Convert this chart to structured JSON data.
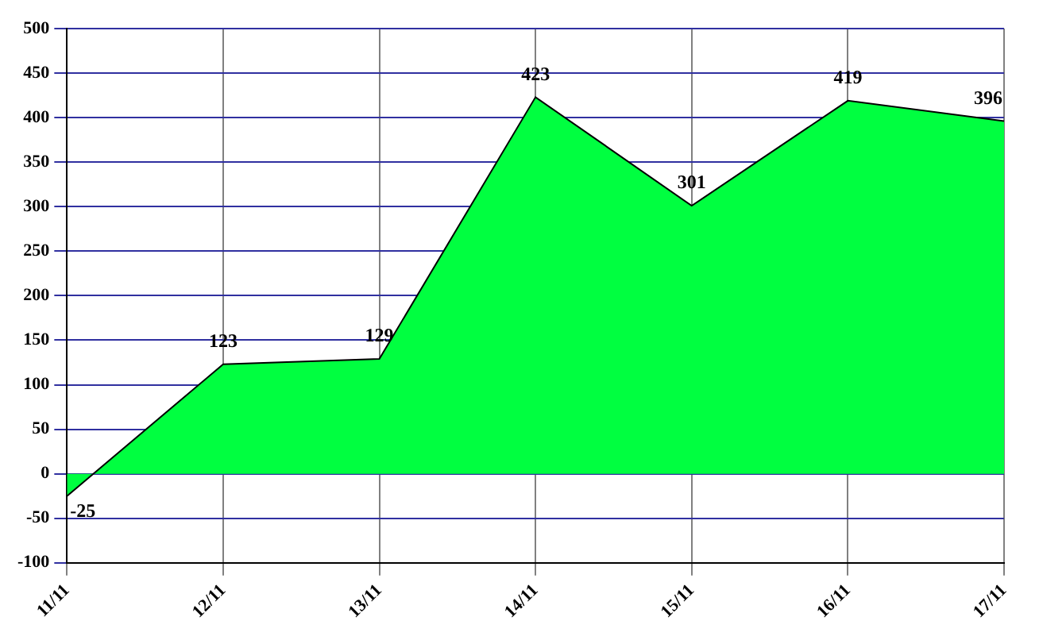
{
  "chart_data": {
    "type": "area",
    "categories": [
      "11/11",
      "12/11",
      "13/11",
      "14/11",
      "15/11",
      "16/11",
      "17/11"
    ],
    "values": [
      -25,
      123,
      129,
      423,
      301,
      419,
      396
    ],
    "color": "#00ff40",
    "ylim": [
      -100,
      500
    ],
    "yticks": [
      -100,
      -50,
      0,
      50,
      100,
      150,
      200,
      250,
      300,
      350,
      400,
      450,
      500
    ],
    "grid": true,
    "data_labels": true
  }
}
